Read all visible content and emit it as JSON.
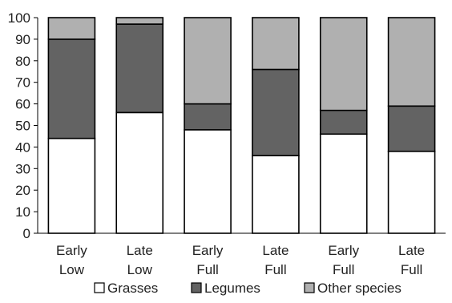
{
  "chart_data": {
    "type": "bar",
    "stacked": true,
    "categories": [
      "Early\nLow",
      "Late\nLow",
      "Early\nFull",
      "Late\nFull",
      "Early\nFull",
      "Late\nFull"
    ],
    "series": [
      {
        "name": "Grasses",
        "values": [
          44,
          56,
          48,
          36,
          46,
          38
        ],
        "color": "#ffffff"
      },
      {
        "name": "Legumes",
        "values": [
          46,
          41,
          12,
          40,
          11,
          21
        ],
        "color": "#636363"
      },
      {
        "name": "Other species",
        "values": [
          10,
          3,
          40,
          24,
          43,
          41
        ],
        "color": "#b0b0b0"
      }
    ],
    "title": "",
    "xlabel": "",
    "ylabel": "",
    "ylim": [
      0,
      100
    ],
    "yticks": [
      0,
      10,
      20,
      30,
      40,
      50,
      60,
      70,
      80,
      90,
      100
    ],
    "grid": false,
    "legend_position": "bottom"
  }
}
